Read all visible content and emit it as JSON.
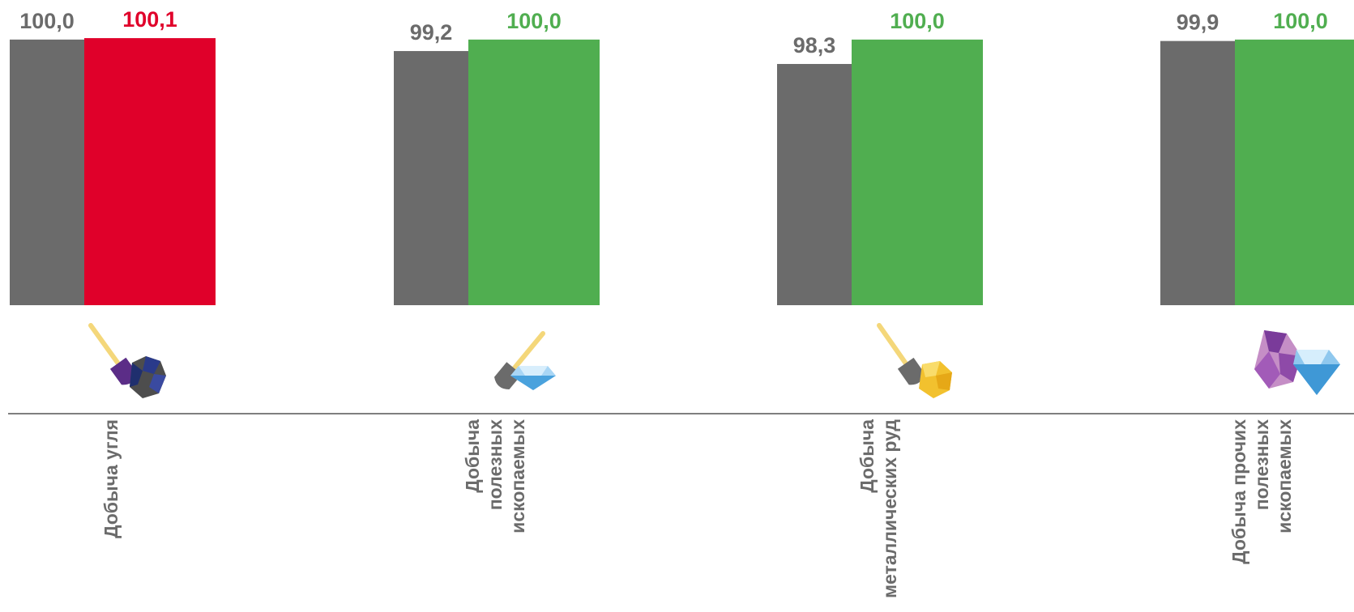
{
  "chart_data": {
    "type": "bar",
    "categories": [
      [
        "Добыча угля"
      ],
      [
        "Добыча",
        "полезных",
        "ископаемых"
      ],
      [
        "Добыча",
        "металлических руд"
      ],
      [
        "Добыча прочих",
        "полезных",
        "ископаемых"
      ]
    ],
    "series": [
      {
        "values": [
          100.0,
          99.2,
          98.3,
          99.9
        ],
        "labels": [
          "100,0",
          "99,2",
          "98,3",
          "99,9"
        ],
        "color": "#6b6b6b"
      },
      {
        "values": [
          100.1,
          100.0,
          100.0,
          100.0
        ],
        "labels": [
          "100,1",
          "100,0",
          "100,0",
          "100,0"
        ],
        "colors": [
          "#e0002a",
          "#50ae50",
          "#50ae50",
          "#50ae50"
        ]
      }
    ],
    "ylim": [
      81.5,
      100.5
    ],
    "icons": [
      "shovel-coal-icon",
      "shovel-diamond-icon",
      "shovel-gold-ore-icon",
      "gems-icon"
    ],
    "label_colors": {
      "category": "#6b6b6b",
      "axis": "#7f7f7f"
    }
  }
}
